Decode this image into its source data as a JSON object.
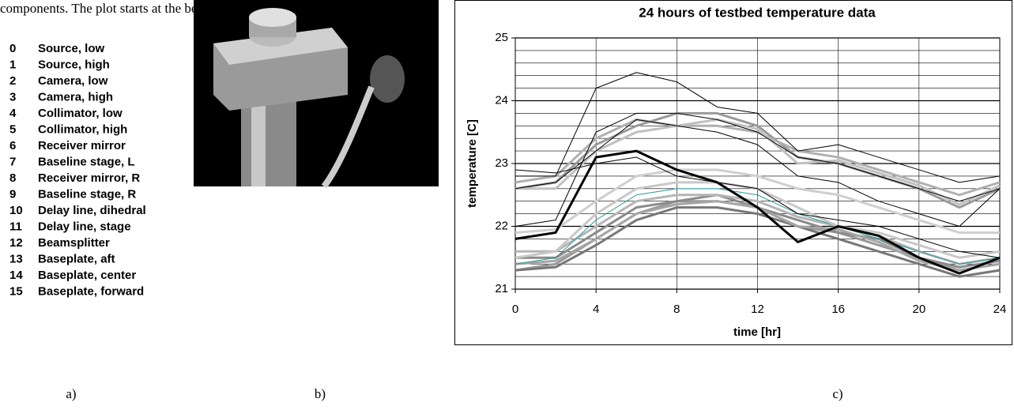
{
  "text_fragment": "components.  The plot starts at the beginning of the",
  "sensor_list": [
    {
      "number": "0",
      "label": "Source, low"
    },
    {
      "number": "1",
      "label": "Source, high"
    },
    {
      "number": "2",
      "label": "Camera, low"
    },
    {
      "number": "3",
      "label": "Camera, high"
    },
    {
      "number": "4",
      "label": "Collimator, low"
    },
    {
      "number": "5",
      "label": "Collimator, high"
    },
    {
      "number": "6",
      "label": "Receiver mirror"
    },
    {
      "number": "7",
      "label": "Baseline stage, L"
    },
    {
      "number": "8",
      "label": "Receiver mirror, R"
    },
    {
      "number": "9",
      "label": "Baseline stage, R"
    },
    {
      "number": "10",
      "label": "Delay line, dihedral"
    },
    {
      "number": "11",
      "label": "Delay line, stage"
    },
    {
      "number": "12",
      "label": "Beamsplitter"
    },
    {
      "number": "13",
      "label": "Baseplate, aft"
    },
    {
      "number": "14",
      "label": "Baseplate, center"
    },
    {
      "number": "15",
      "label": "Baseplate, forward"
    }
  ],
  "panel_labels": [
    "a)",
    "b)",
    "c)"
  ],
  "chart_data": {
    "type": "line",
    "title": "24 hours of testbed temperature data",
    "x_label": "time [hr]",
    "y_label": "temperature [C]",
    "x": [
      0,
      2,
      4,
      6,
      8,
      10,
      12,
      14,
      16,
      18,
      20,
      22,
      24
    ],
    "xlim": [
      0,
      24
    ],
    "xticks": [
      0,
      4,
      8,
      12,
      16,
      20,
      24
    ],
    "ylim": [
      21,
      25
    ],
    "yticks": [
      21,
      22,
      23,
      24,
      25
    ],
    "yminor_ticks": [
      21.2,
      21.4,
      21.6,
      21.8,
      22.2,
      22.4,
      22.6,
      22.8,
      23.2,
      23.4,
      23.6,
      23.8,
      24.2,
      24.4,
      24.6,
      24.8
    ],
    "grid": true,
    "series": [
      {
        "color": "#999999",
        "line_width": 3,
        "values": [
          21.3,
          21.4,
          21.8,
          22.2,
          22.4,
          22.4,
          22.3,
          22.0,
          21.9,
          21.7,
          21.5,
          21.3,
          21.4
        ]
      },
      {
        "color": "#8a8a8a",
        "line_width": 3,
        "values": [
          21.5,
          21.5,
          21.9,
          22.3,
          22.4,
          22.5,
          22.3,
          22.1,
          21.9,
          21.8,
          21.5,
          21.35,
          21.45
        ]
      },
      {
        "color": "#777777",
        "line_width": 3,
        "values": [
          21.3,
          21.35,
          21.7,
          22.1,
          22.3,
          22.3,
          22.2,
          22.0,
          21.8,
          21.6,
          21.4,
          21.2,
          21.3
        ]
      },
      {
        "color": "#a5a5a5",
        "line_width": 3,
        "values": [
          21.4,
          21.45,
          21.8,
          22.2,
          22.35,
          22.4,
          22.3,
          22.0,
          21.95,
          21.75,
          21.45,
          21.3,
          21.4
        ]
      },
      {
        "color": "#b5b5b5",
        "line_width": 3,
        "values": [
          21.6,
          21.6,
          22.0,
          22.4,
          22.5,
          22.5,
          22.4,
          22.15,
          22.0,
          21.85,
          21.6,
          21.4,
          21.5
        ]
      },
      {
        "color": "#2a9a9a",
        "line_width": 1,
        "values": [
          21.4,
          21.5,
          22.1,
          22.5,
          22.6,
          22.6,
          22.5,
          22.2,
          22.0,
          21.8,
          21.6,
          21.4,
          21.5
        ]
      },
      {
        "color": "#c8c8c8",
        "line_width": 3,
        "values": [
          21.5,
          21.6,
          22.2,
          22.6,
          22.7,
          22.7,
          22.6,
          22.3,
          22.0,
          21.9,
          21.7,
          21.5,
          21.6
        ]
      },
      {
        "color": "#cfcfcf",
        "line_width": 3,
        "values": [
          21.9,
          21.95,
          22.4,
          22.8,
          22.9,
          22.9,
          22.8,
          22.6,
          22.5,
          22.3,
          22.1,
          21.9,
          21.9
        ]
      },
      {
        "color": "#9a9a9a",
        "line_width": 3,
        "values": [
          22.6,
          22.7,
          23.3,
          23.6,
          23.8,
          23.8,
          23.6,
          23.1,
          23.0,
          22.8,
          22.6,
          22.3,
          22.6
        ]
      },
      {
        "color": "#b0b0b0",
        "line_width": 3,
        "values": [
          22.7,
          22.8,
          23.4,
          23.7,
          23.6,
          23.6,
          23.5,
          23.2,
          23.1,
          22.9,
          22.7,
          22.5,
          22.7
        ]
      },
      {
        "color": "#c0c0c0",
        "line_width": 3,
        "values": [
          22.6,
          22.6,
          23.2,
          23.5,
          23.6,
          23.7,
          23.55,
          23.0,
          23.05,
          22.85,
          22.65,
          22.35,
          22.65
        ]
      },
      {
        "color": "#000000",
        "line_width": 1,
        "values": [
          22.8,
          22.8,
          24.2,
          24.45,
          24.3,
          23.9,
          23.8,
          23.2,
          23.3,
          23.1,
          22.9,
          22.7,
          22.8
        ]
      },
      {
        "color": "#000000",
        "line_width": 1,
        "values": [
          22.0,
          22.1,
          23.5,
          23.8,
          23.8,
          23.7,
          23.5,
          23.1,
          23.0,
          22.8,
          22.6,
          22.4,
          22.6
        ]
      },
      {
        "color": "#000000",
        "line_width": 1,
        "values": [
          22.6,
          22.7,
          23.2,
          23.7,
          23.6,
          23.5,
          23.3,
          22.8,
          22.7,
          22.4,
          22.2,
          22.0,
          22.6
        ]
      },
      {
        "color": "#000000",
        "line_width": 1,
        "values": [
          22.9,
          22.85,
          23.0,
          23.1,
          22.8,
          22.7,
          22.6,
          22.2,
          22.1,
          22.0,
          21.8,
          21.6,
          21.5
        ]
      },
      {
        "color": "#000000",
        "line_width": 3,
        "values": [
          21.8,
          21.9,
          23.1,
          23.2,
          22.9,
          22.7,
          22.3,
          21.75,
          22.0,
          21.85,
          21.5,
          21.25,
          21.5
        ]
      }
    ]
  }
}
